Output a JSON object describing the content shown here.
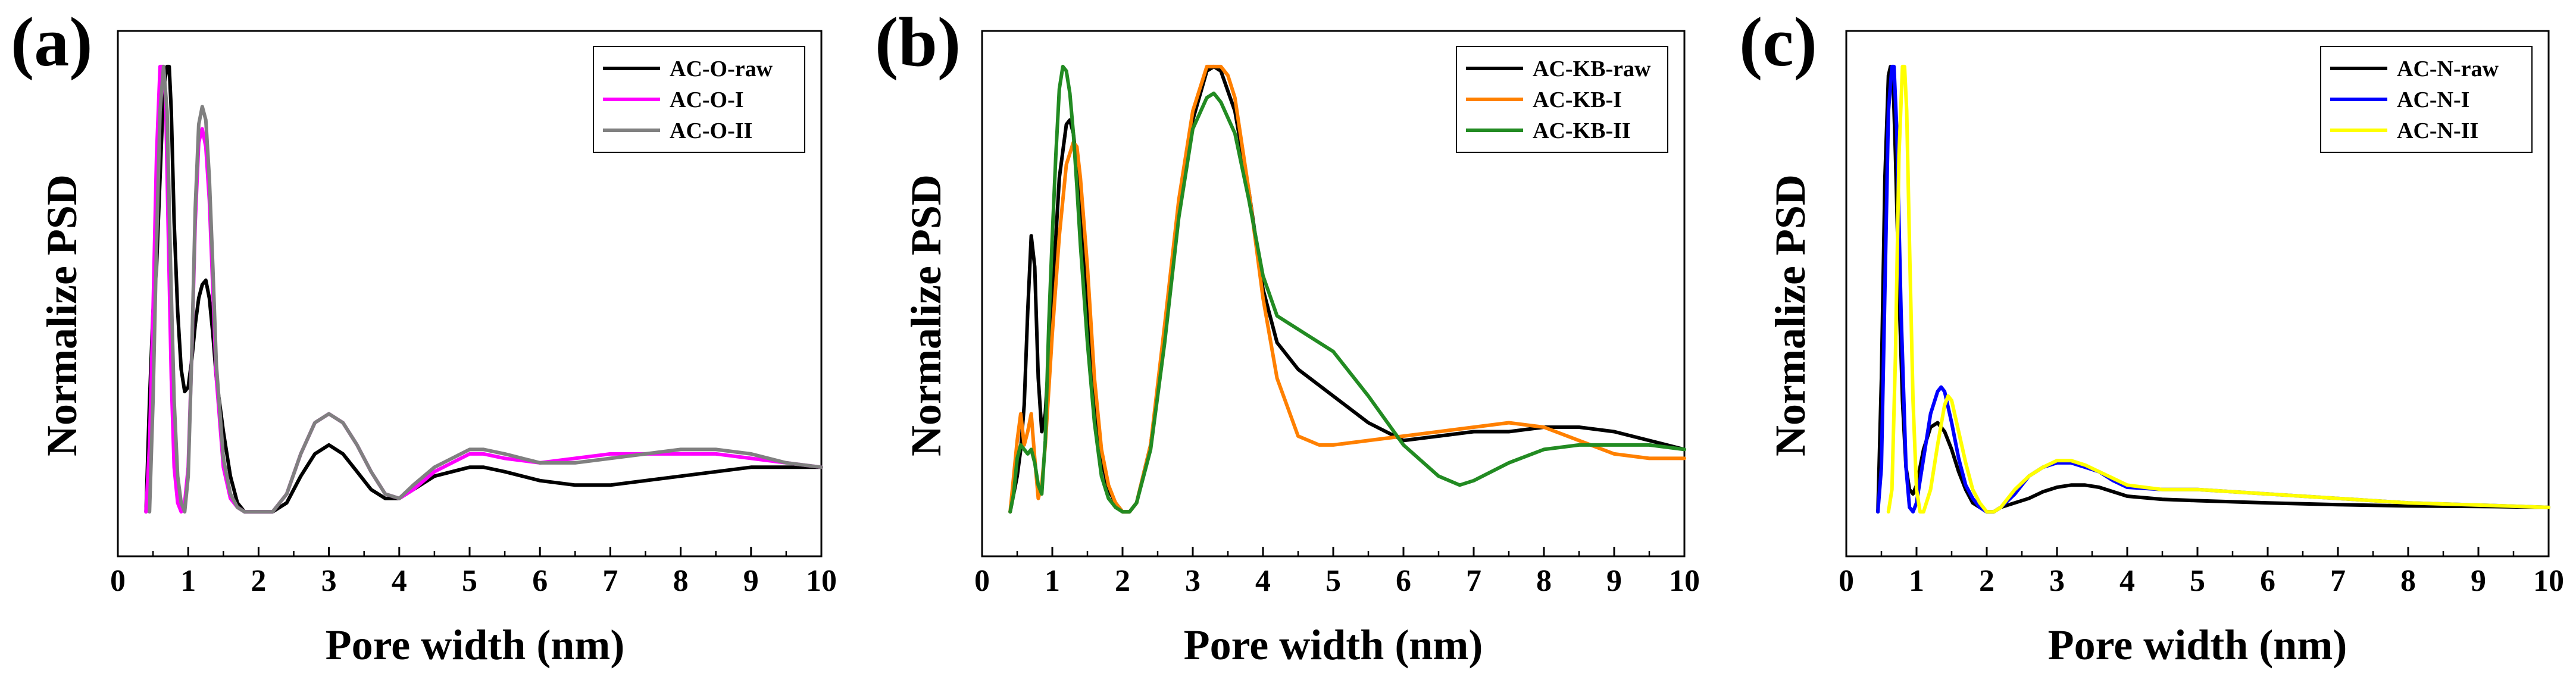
{
  "chart_data": [
    {
      "type": "line",
      "panel_label": "(a)",
      "xlabel": "Pore width (nm)",
      "ylabel": "Normalize PSD",
      "xlim": [
        0,
        10
      ],
      "ylim": [
        -0.1,
        1.08
      ],
      "xticks": [
        "0",
        "1",
        "2",
        "3",
        "4",
        "5",
        "6",
        "7",
        "8",
        "9",
        "10"
      ],
      "legend_position": "top-right",
      "series": [
        {
          "name": "AC-O-raw",
          "color": "#000000",
          "x": [
            0.4,
            0.45,
            0.5,
            0.55,
            0.6,
            0.65,
            0.7,
            0.73,
            0.76,
            0.8,
            0.85,
            0.9,
            0.95,
            1.0,
            1.05,
            1.1,
            1.15,
            1.2,
            1.25,
            1.3,
            1.35,
            1.4,
            1.5,
            1.6,
            1.7,
            1.8,
            1.9,
            2.0,
            2.2,
            2.4,
            2.6,
            2.8,
            3.0,
            3.2,
            3.4,
            3.6,
            3.8,
            4.0,
            4.2,
            4.5,
            5.0,
            5.2,
            5.5,
            6.0,
            6.5,
            7.0,
            7.5,
            8.0,
            8.5,
            9.0,
            9.5,
            10.0
          ],
          "y": [
            0.0,
            0.25,
            0.45,
            0.55,
            0.75,
            0.95,
            1.0,
            1.0,
            0.9,
            0.65,
            0.45,
            0.32,
            0.27,
            0.28,
            0.34,
            0.42,
            0.48,
            0.51,
            0.52,
            0.48,
            0.4,
            0.3,
            0.18,
            0.08,
            0.02,
            0.0,
            0.0,
            0.0,
            0.0,
            0.02,
            0.08,
            0.13,
            0.15,
            0.13,
            0.09,
            0.05,
            0.03,
            0.03,
            0.05,
            0.08,
            0.1,
            0.1,
            0.09,
            0.07,
            0.06,
            0.06,
            0.07,
            0.08,
            0.09,
            0.1,
            0.1,
            0.1
          ]
        },
        {
          "name": "AC-O-I",
          "color": "#ff00ff",
          "x": [
            0.4,
            0.45,
            0.5,
            0.55,
            0.6,
            0.65,
            0.68,
            0.72,
            0.76,
            0.8,
            0.85,
            0.9,
            0.95,
            1.0,
            1.05,
            1.1,
            1.15,
            1.2,
            1.25,
            1.3,
            1.35,
            1.4,
            1.5,
            1.6,
            1.7,
            1.8,
            1.9,
            2.0,
            2.2,
            2.4,
            2.6,
            2.8,
            3.0,
            3.2,
            3.4,
            3.6,
            3.8,
            4.0,
            4.2,
            4.5,
            5.0,
            5.2,
            5.5,
            6.0,
            6.5,
            7.0,
            7.5,
            8.0,
            8.5,
            9.0,
            9.5,
            10.0
          ],
          "y": [
            0.0,
            0.15,
            0.45,
            0.8,
            1.0,
            1.0,
            0.92,
            0.6,
            0.3,
            0.1,
            0.02,
            0.0,
            0.02,
            0.1,
            0.35,
            0.65,
            0.83,
            0.86,
            0.82,
            0.7,
            0.5,
            0.3,
            0.1,
            0.03,
            0.01,
            0.0,
            0.0,
            0.0,
            0.0,
            0.04,
            0.13,
            0.2,
            0.22,
            0.2,
            0.15,
            0.09,
            0.04,
            0.03,
            0.05,
            0.09,
            0.13,
            0.13,
            0.12,
            0.11,
            0.12,
            0.13,
            0.13,
            0.13,
            0.13,
            0.12,
            0.11,
            0.1
          ]
        },
        {
          "name": "AC-O-II",
          "color": "#808080",
          "x": [
            0.45,
            0.5,
            0.55,
            0.6,
            0.65,
            0.7,
            0.75,
            0.8,
            0.85,
            0.9,
            0.95,
            1.0,
            1.05,
            1.1,
            1.15,
            1.2,
            1.25,
            1.3,
            1.35,
            1.4,
            1.5,
            1.6,
            1.7,
            1.8,
            1.9,
            2.0,
            2.2,
            2.4,
            2.6,
            2.8,
            3.0,
            3.2,
            3.4,
            3.6,
            3.8,
            4.0,
            4.2,
            4.5,
            5.0,
            5.2,
            5.5,
            6.0,
            6.5,
            7.0,
            7.5,
            8.0,
            8.5,
            9.0,
            9.5,
            10.0
          ],
          "y": [
            0.0,
            0.25,
            0.6,
            0.9,
            1.0,
            0.9,
            0.55,
            0.25,
            0.08,
            0.02,
            0.0,
            0.08,
            0.35,
            0.68,
            0.87,
            0.91,
            0.88,
            0.75,
            0.55,
            0.33,
            0.12,
            0.04,
            0.01,
            0.0,
            0.0,
            0.0,
            0.0,
            0.04,
            0.13,
            0.2,
            0.22,
            0.2,
            0.15,
            0.09,
            0.04,
            0.03,
            0.06,
            0.1,
            0.14,
            0.14,
            0.13,
            0.11,
            0.11,
            0.12,
            0.13,
            0.14,
            0.14,
            0.13,
            0.11,
            0.1
          ]
        }
      ]
    },
    {
      "type": "line",
      "panel_label": "(b)",
      "xlabel": "Pore width (nm)",
      "ylabel": "Normalize PSD",
      "xlim": [
        0,
        10
      ],
      "ylim": [
        -0.1,
        1.08
      ],
      "xticks": [
        "0",
        "1",
        "2",
        "3",
        "4",
        "5",
        "6",
        "7",
        "8",
        "9",
        "10"
      ],
      "legend_position": "top-right",
      "series": [
        {
          "name": "AC-KB-raw",
          "color": "#000000",
          "x": [
            0.4,
            0.5,
            0.55,
            0.6,
            0.65,
            0.7,
            0.75,
            0.8,
            0.85,
            0.9,
            1.0,
            1.1,
            1.2,
            1.25,
            1.3,
            1.4,
            1.5,
            1.6,
            1.7,
            1.8,
            1.9,
            2.0,
            2.1,
            2.2,
            2.4,
            2.6,
            2.8,
            3.0,
            3.2,
            3.3,
            3.4,
            3.6,
            3.8,
            4.0,
            4.2,
            4.5,
            5.0,
            5.5,
            6.0,
            6.5,
            7.0,
            7.5,
            8.0,
            8.5,
            9.0,
            9.5,
            10.0
          ],
          "y": [
            0.0,
            0.08,
            0.14,
            0.24,
            0.45,
            0.62,
            0.55,
            0.3,
            0.18,
            0.22,
            0.48,
            0.75,
            0.87,
            0.88,
            0.85,
            0.7,
            0.45,
            0.25,
            0.12,
            0.05,
            0.02,
            0.0,
            0.0,
            0.02,
            0.15,
            0.4,
            0.68,
            0.88,
            0.99,
            1.0,
            0.99,
            0.9,
            0.72,
            0.5,
            0.38,
            0.32,
            0.26,
            0.2,
            0.16,
            0.17,
            0.18,
            0.18,
            0.19,
            0.19,
            0.18,
            0.16,
            0.14
          ]
        },
        {
          "name": "AC-KB-I",
          "color": "#ff8000",
          "x": [
            0.4,
            0.5,
            0.55,
            0.6,
            0.65,
            0.7,
            0.75,
            0.8,
            0.85,
            0.9,
            1.0,
            1.1,
            1.2,
            1.3,
            1.35,
            1.4,
            1.5,
            1.6,
            1.7,
            1.8,
            1.9,
            2.0,
            2.1,
            2.2,
            2.4,
            2.6,
            2.8,
            3.0,
            3.2,
            3.3,
            3.4,
            3.5,
            3.6,
            3.8,
            4.0,
            4.2,
            4.5,
            4.8,
            5.0,
            5.5,
            6.0,
            6.5,
            7.0,
            7.5,
            8.0,
            8.5,
            9.0,
            9.5,
            10.0
          ],
          "y": [
            0.0,
            0.16,
            0.22,
            0.15,
            0.18,
            0.22,
            0.12,
            0.03,
            0.06,
            0.15,
            0.4,
            0.62,
            0.78,
            0.83,
            0.82,
            0.75,
            0.55,
            0.3,
            0.14,
            0.06,
            0.02,
            0.0,
            0.0,
            0.02,
            0.15,
            0.42,
            0.7,
            0.9,
            1.0,
            1.0,
            1.0,
            0.98,
            0.93,
            0.72,
            0.48,
            0.3,
            0.17,
            0.15,
            0.15,
            0.16,
            0.17,
            0.18,
            0.19,
            0.2,
            0.19,
            0.16,
            0.13,
            0.12,
            0.12
          ]
        },
        {
          "name": "AC-KB-II",
          "color": "#228b22",
          "x": [
            0.4,
            0.45,
            0.5,
            0.55,
            0.6,
            0.65,
            0.7,
            0.75,
            0.8,
            0.85,
            0.9,
            0.95,
            1.0,
            1.05,
            1.1,
            1.15,
            1.2,
            1.25,
            1.3,
            1.35,
            1.4,
            1.5,
            1.6,
            1.7,
            1.8,
            1.9,
            2.0,
            2.1,
            2.2,
            2.4,
            2.6,
            2.8,
            3.0,
            3.2,
            3.3,
            3.4,
            3.6,
            3.8,
            4.0,
            4.2,
            4.5,
            5.0,
            5.5,
            6.0,
            6.5,
            6.8,
            7.0,
            7.5,
            8.0,
            8.5,
            9.0,
            9.5,
            10.0
          ],
          "y": [
            0.0,
            0.04,
            0.12,
            0.15,
            0.14,
            0.13,
            0.14,
            0.11,
            0.06,
            0.04,
            0.16,
            0.42,
            0.62,
            0.8,
            0.95,
            1.0,
            0.99,
            0.94,
            0.85,
            0.73,
            0.6,
            0.38,
            0.2,
            0.08,
            0.03,
            0.01,
            0.0,
            0.0,
            0.02,
            0.14,
            0.38,
            0.66,
            0.86,
            0.93,
            0.94,
            0.92,
            0.85,
            0.7,
            0.53,
            0.44,
            0.41,
            0.36,
            0.26,
            0.15,
            0.08,
            0.06,
            0.07,
            0.11,
            0.14,
            0.15,
            0.15,
            0.15,
            0.14
          ]
        }
      ]
    },
    {
      "type": "line",
      "panel_label": "(c)",
      "xlabel": "Pore width (nm)",
      "ylabel": "Normalize PSD",
      "xlim": [
        0,
        10
      ],
      "ylim": [
        -0.1,
        1.08
      ],
      "xticks": [
        "0",
        "1",
        "2",
        "3",
        "4",
        "5",
        "6",
        "7",
        "8",
        "9",
        "10"
      ],
      "legend_position": "top-right",
      "series": [
        {
          "name": "AC-N-raw",
          "color": "#000000",
          "x": [
            0.45,
            0.5,
            0.55,
            0.6,
            0.63,
            0.67,
            0.7,
            0.75,
            0.8,
            0.85,
            0.9,
            0.95,
            1.0,
            1.05,
            1.1,
            1.2,
            1.3,
            1.4,
            1.5,
            1.6,
            1.7,
            1.8,
            1.9,
            2.0,
            2.1,
            2.2,
            2.4,
            2.6,
            2.8,
            3.0,
            3.2,
            3.4,
            3.6,
            3.8,
            4.0,
            4.5,
            5.0,
            6.0,
            7.0,
            8.0,
            9.0,
            10.0
          ],
          "y": [
            0.0,
            0.3,
            0.75,
            0.98,
            1.0,
            0.95,
            0.8,
            0.5,
            0.25,
            0.1,
            0.05,
            0.04,
            0.06,
            0.1,
            0.14,
            0.19,
            0.2,
            0.18,
            0.14,
            0.09,
            0.05,
            0.02,
            0.01,
            0.0,
            0.0,
            0.01,
            0.02,
            0.03,
            0.045,
            0.055,
            0.06,
            0.06,
            0.055,
            0.045,
            0.035,
            0.028,
            0.025,
            0.02,
            0.016,
            0.013,
            0.012,
            0.01
          ]
        },
        {
          "name": "AC-N-I",
          "color": "#0000ff",
          "x": [
            0.45,
            0.5,
            0.55,
            0.6,
            0.65,
            0.68,
            0.72,
            0.78,
            0.85,
            0.9,
            0.95,
            1.0,
            1.1,
            1.2,
            1.3,
            1.35,
            1.4,
            1.5,
            1.6,
            1.7,
            1.8,
            1.9,
            2.0,
            2.1,
            2.2,
            2.4,
            2.6,
            2.8,
            3.0,
            3.2,
            3.4,
            3.6,
            3.8,
            4.0,
            4.5,
            5.0,
            5.5,
            6.0,
            7.0,
            8.0,
            9.0,
            10.0
          ],
          "y": [
            0.0,
            0.1,
            0.5,
            0.9,
            1.0,
            1.0,
            0.85,
            0.45,
            0.1,
            0.01,
            0.0,
            0.02,
            0.12,
            0.22,
            0.27,
            0.28,
            0.27,
            0.2,
            0.12,
            0.06,
            0.03,
            0.01,
            0.0,
            0.0,
            0.01,
            0.04,
            0.08,
            0.1,
            0.11,
            0.11,
            0.1,
            0.09,
            0.07,
            0.055,
            0.05,
            0.05,
            0.045,
            0.04,
            0.03,
            0.02,
            0.015,
            0.01
          ]
        },
        {
          "name": "AC-N-II",
          "color": "#ffff00",
          "x": [
            0.6,
            0.65,
            0.7,
            0.75,
            0.8,
            0.83,
            0.86,
            0.9,
            0.95,
            1.0,
            1.05,
            1.1,
            1.2,
            1.3,
            1.4,
            1.45,
            1.5,
            1.6,
            1.7,
            1.8,
            1.9,
            2.0,
            2.1,
            2.2,
            2.4,
            2.6,
            2.8,
            3.0,
            3.2,
            3.4,
            3.6,
            3.8,
            4.0,
            4.5,
            5.0,
            5.5,
            6.0,
            7.0,
            8.0,
            9.0,
            10.0
          ],
          "y": [
            0.0,
            0.05,
            0.35,
            0.8,
            1.0,
            1.0,
            0.9,
            0.6,
            0.25,
            0.05,
            0.0,
            0.0,
            0.05,
            0.15,
            0.24,
            0.26,
            0.25,
            0.18,
            0.11,
            0.05,
            0.02,
            0.0,
            0.0,
            0.01,
            0.05,
            0.08,
            0.1,
            0.115,
            0.115,
            0.105,
            0.09,
            0.075,
            0.06,
            0.05,
            0.05,
            0.045,
            0.04,
            0.03,
            0.02,
            0.015,
            0.01
          ]
        }
      ]
    }
  ]
}
